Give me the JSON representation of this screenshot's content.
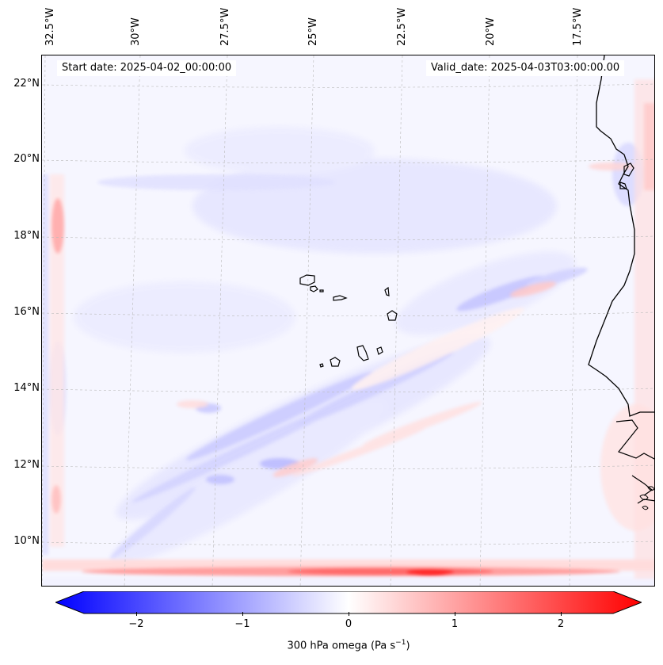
{
  "header": {
    "start_date": "Start date: 2025-04-02_00:00:00",
    "valid_date": "Valid_date: 2025-04-03T03:00:00.00"
  },
  "axes": {
    "longitude_labels": [
      "32.5°W",
      "30°W",
      "27.5°W",
      "25°W",
      "22.5°W",
      "20°W",
      "17.5°W"
    ],
    "latitude_labels": [
      "22°N",
      "20°N",
      "18°N",
      "16°N",
      "14°N",
      "12°N",
      "10°N"
    ]
  },
  "colorbar": {
    "label_text": "300 hPa omega (Pa s",
    "label_sup": "−1",
    "label_close": ")",
    "ticks": [
      "−2",
      "−1",
      "0",
      "1",
      "2"
    ],
    "tick_values": [
      -2,
      -1,
      0,
      1,
      2
    ],
    "range": [
      -2.5,
      2.5
    ],
    "colors": {
      "low": "#0000ff",
      "mid": "#ffffff",
      "high": "#ff0000"
    }
  },
  "map": {
    "variable": "300 hPa omega",
    "features": [
      "coastline",
      "cape-verde-islands",
      "gridlines"
    ]
  }
}
